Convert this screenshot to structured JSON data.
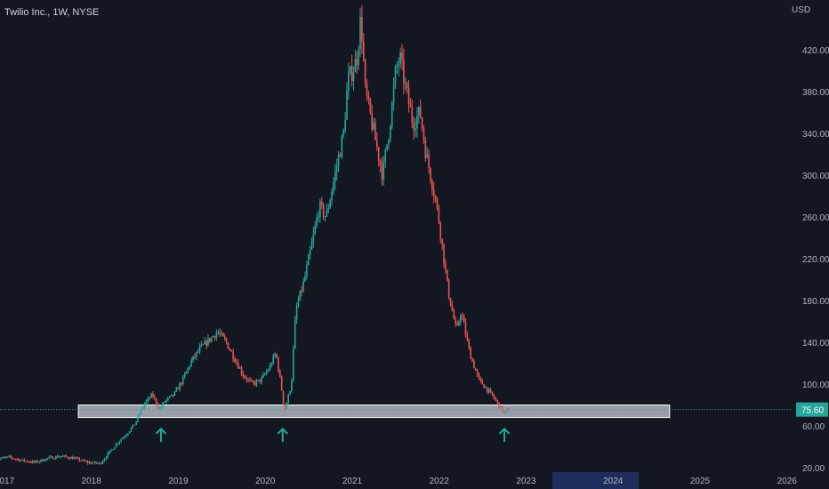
{
  "header": {
    "symbol_title": "Twilio Inc., 1W, NYSE"
  },
  "chart_data": {
    "type": "candlestick",
    "title": "Twilio Inc., 1W, NYSE",
    "currency_label": "USD",
    "y_ticks": [
      "420.00",
      "380.00",
      "340.00",
      "300.00",
      "260.00",
      "220.00",
      "180.00",
      "140.00",
      "100.00",
      "60.00",
      "20.00"
    ],
    "y_tick_values": [
      420,
      380,
      340,
      300,
      260,
      220,
      180,
      140,
      100,
      60,
      20
    ],
    "x_ticks": [
      "2017",
      "2018",
      "2019",
      "2020",
      "2021",
      "2022",
      "2023",
      "2024",
      "2025",
      "2026"
    ],
    "x_tick_values": [
      2017,
      2018,
      2019,
      2020,
      2021,
      2022,
      2023,
      2024,
      2025,
      2026
    ],
    "highlighted_x_tick": "2024",
    "last_price": "75.60",
    "last_price_value": 75.6,
    "support_zone": {
      "from": 2017.85,
      "to": 2024.65,
      "low": 68,
      "high": 80
    },
    "arrows": [
      {
        "x": 2018.8,
        "price": 64
      },
      {
        "x": 2020.2,
        "price": 64
      },
      {
        "x": 2022.75,
        "price": 64
      }
    ],
    "price_path": [
      [
        2016.9,
        28
      ],
      [
        2017.05,
        30
      ],
      [
        2017.2,
        27
      ],
      [
        2017.35,
        25
      ],
      [
        2017.5,
        29
      ],
      [
        2017.65,
        31
      ],
      [
        2017.8,
        29
      ],
      [
        2017.95,
        25
      ],
      [
        2018.1,
        24
      ],
      [
        2018.2,
        34
      ],
      [
        2018.3,
        44
      ],
      [
        2018.4,
        52
      ],
      [
        2018.5,
        62
      ],
      [
        2018.6,
        80
      ],
      [
        2018.7,
        90
      ],
      [
        2018.78,
        76
      ],
      [
        2018.85,
        84
      ],
      [
        2018.95,
        90
      ],
      [
        2019.05,
        104
      ],
      [
        2019.15,
        122
      ],
      [
        2019.25,
        134
      ],
      [
        2019.35,
        142
      ],
      [
        2019.45,
        150
      ],
      [
        2019.55,
        140
      ],
      [
        2019.65,
        124
      ],
      [
        2019.75,
        108
      ],
      [
        2019.85,
        100
      ],
      [
        2019.95,
        104
      ],
      [
        2020.05,
        116
      ],
      [
        2020.12,
        130
      ],
      [
        2020.18,
        100
      ],
      [
        2020.22,
        74
      ],
      [
        2020.3,
        100
      ],
      [
        2020.35,
        170
      ],
      [
        2020.45,
        200
      ],
      [
        2020.55,
        240
      ],
      [
        2020.62,
        270
      ],
      [
        2020.7,
        260
      ],
      [
        2020.8,
        300
      ],
      [
        2020.9,
        340
      ],
      [
        2020.95,
        390
      ],
      [
        2021.05,
        410
      ],
      [
        2021.1,
        452
      ],
      [
        2021.15,
        380
      ],
      [
        2021.25,
        340
      ],
      [
        2021.35,
        300
      ],
      [
        2021.45,
        360
      ],
      [
        2021.5,
        400
      ],
      [
        2021.55,
        412
      ],
      [
        2021.62,
        380
      ],
      [
        2021.7,
        350
      ],
      [
        2021.78,
        360
      ],
      [
        2021.85,
        320
      ],
      [
        2021.95,
        280
      ],
      [
        2022.0,
        255
      ],
      [
        2022.1,
        190
      ],
      [
        2022.2,
        150
      ],
      [
        2022.25,
        170
      ],
      [
        2022.35,
        130
      ],
      [
        2022.45,
        105
      ],
      [
        2022.55,
        95
      ],
      [
        2022.62,
        88
      ],
      [
        2022.7,
        78
      ],
      [
        2022.75,
        72
      ],
      [
        2022.82,
        78
      ]
    ]
  }
}
